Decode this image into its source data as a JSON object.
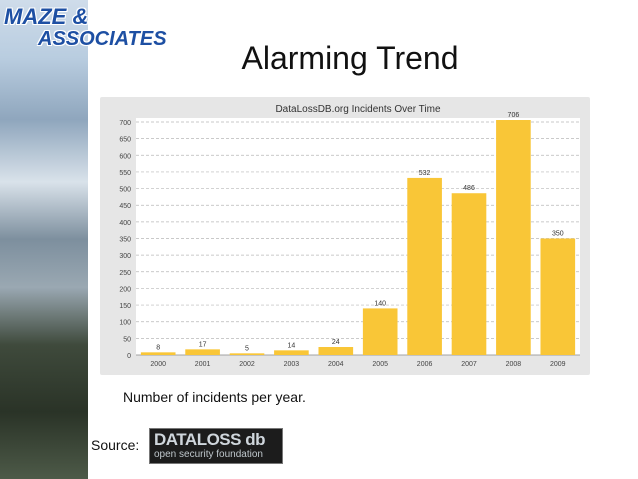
{
  "logo": {
    "line1": "MAZE &",
    "line2": "ASSOCIATES"
  },
  "slide": {
    "title": "Alarming Trend"
  },
  "caption": "Number of incidents per year.",
  "source": {
    "label": "Source:",
    "logo_top": "DATALOSS db",
    "logo_bottom": "open security foundation"
  },
  "colors": {
    "bar": "#f9c637",
    "chart_bg": "#e6e6e6",
    "plot_bg": "#ffffff",
    "title_blue": "#1d4fa3"
  },
  "chart_data": {
    "type": "bar",
    "title": "DataLossDB.org Incidents Over Time",
    "xlabel": "",
    "ylabel": "",
    "categories": [
      "2000",
      "2001",
      "2002",
      "2003",
      "2004",
      "2005",
      "2006",
      "2007",
      "2008",
      "2009"
    ],
    "values": [
      8,
      17,
      5,
      14,
      24,
      140,
      532,
      486,
      706,
      350
    ],
    "data_labels": [
      "8",
      "17",
      "5",
      "14",
      "24",
      "140",
      "532",
      "486",
      "706",
      "350"
    ],
    "ylim": [
      0,
      700
    ],
    "yticks": [
      0,
      50,
      100,
      150,
      200,
      250,
      300,
      350,
      400,
      450,
      500,
      550,
      600,
      650,
      700
    ],
    "grid": true,
    "legend": "none"
  }
}
